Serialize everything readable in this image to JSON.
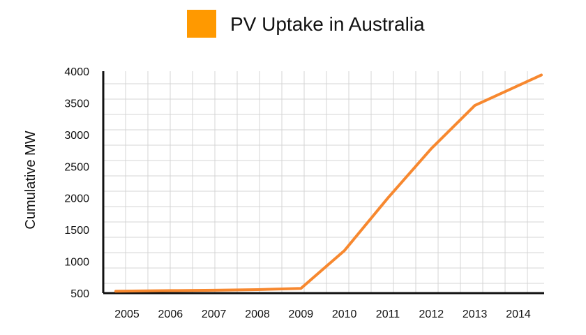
{
  "chart_data": {
    "type": "line",
    "title": "",
    "xlabel": "",
    "ylabel": "Cumulative MW",
    "categories": [
      "2005",
      "2006",
      "2007",
      "2008",
      "2009",
      "2010",
      "2011",
      "2012",
      "2013",
      "2014"
    ],
    "series": [
      {
        "name": "PV Uptake in Australia",
        "color": "#f7882f",
        "values": [
          530,
          540,
          545,
          555,
          575,
          1170,
          2000,
          2780,
          3460,
          3940
        ]
      }
    ],
    "ylim": [
      500,
      4000
    ],
    "yticks": [
      "500",
      "1000",
      "1500",
      "2000",
      "2500",
      "3000",
      "3500",
      "4000"
    ],
    "grid": true,
    "legend_position": "top-center",
    "legend_swatch_color": "#ff9900"
  }
}
